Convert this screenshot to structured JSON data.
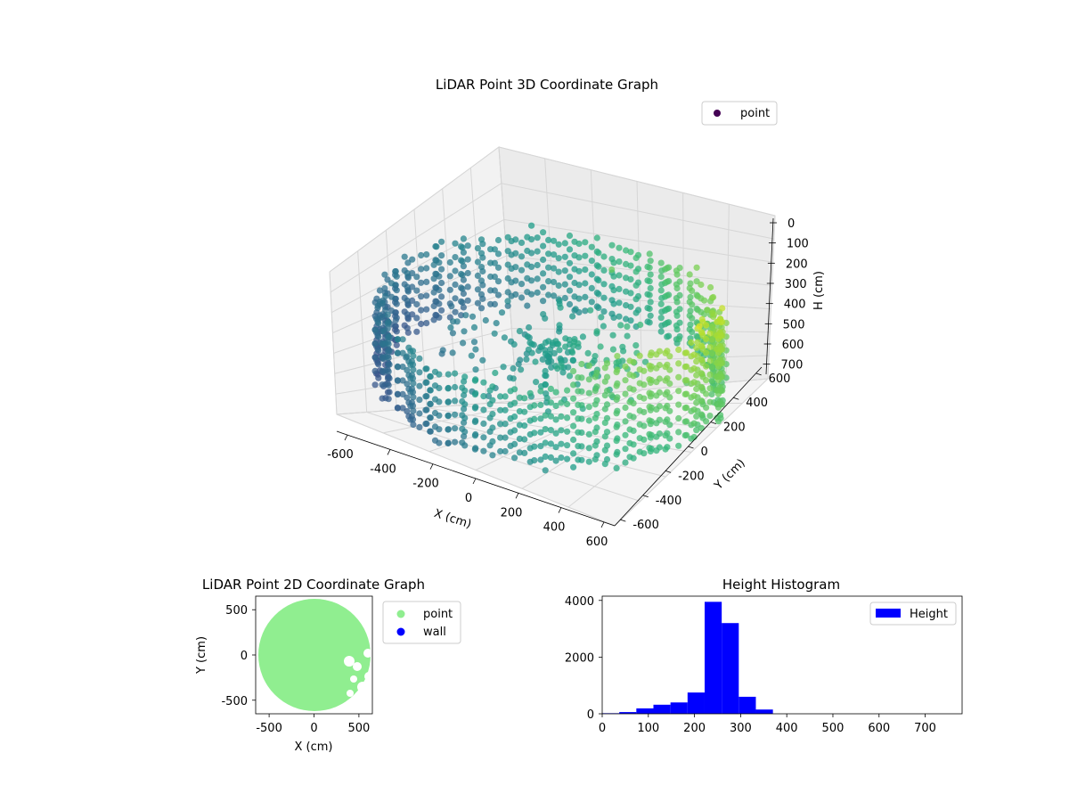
{
  "chart_data": [
    {
      "type": "scatter",
      "projection": "3d",
      "title": "LiDAR Point 3D Coordinate Graph",
      "xlabel": "X (cm)",
      "ylabel": "Y (cm)",
      "zlabel": "H (cm)",
      "xlim": [
        -650,
        650
      ],
      "ylim": [
        -650,
        650
      ],
      "zlim": [
        0,
        750
      ],
      "z_inverted": true,
      "xticks": [
        "-600",
        "-400",
        "-200",
        "0",
        "200",
        "400",
        "600"
      ],
      "yticks": [
        "-600",
        "-400",
        "-200",
        "0",
        "200",
        "400",
        "600"
      ],
      "zticks": [
        "0",
        "100",
        "200",
        "300",
        "400",
        "500",
        "600",
        "700"
      ],
      "colormap": "viridis",
      "grid": true,
      "legend": {
        "position": "upper-right",
        "entries": [
          "point"
        ]
      },
      "series": [
        {
          "name": "point",
          "description_points": [
            {
              "x": -400,
              "y": 300,
              "h": 250
            },
            {
              "x": 0,
              "y": 500,
              "h": 200
            },
            {
              "x": 400,
              "y": 300,
              "h": 250
            },
            {
              "x": 500,
              "y": -100,
              "h": 300
            },
            {
              "x": 300,
              "y": -450,
              "h": 400
            },
            {
              "x": -100,
              "y": -500,
              "h": 450
            },
            {
              "x": -450,
              "y": -300,
              "h": 350
            },
            {
              "x": -550,
              "y": 50,
              "h": 300
            },
            {
              "x": 600,
              "y": -400,
              "h": 700
            },
            {
              "x": 0,
              "y": 0,
              "h": 280
            },
            {
              "x": 200,
              "y": 100,
              "h": 600
            }
          ]
        }
      ]
    },
    {
      "type": "scatter",
      "title": "LiDAR Point 2D Coordinate Graph",
      "xlabel": "X (cm)",
      "ylabel": "Y (cm)",
      "xlim": [
        -650,
        650
      ],
      "ylim": [
        -650,
        650
      ],
      "xticks": [
        "-500",
        "0",
        "500"
      ],
      "yticks": [
        "500",
        "0",
        "-500"
      ],
      "legend": {
        "position": "outside-right",
        "entries": [
          "point",
          "wall"
        ]
      },
      "series": [
        {
          "name": "point",
          "color": "#90ee90",
          "shape": "disc",
          "center": [
            0,
            0
          ],
          "radius": 620
        },
        {
          "name": "wall",
          "color": "#0000ff",
          "values": []
        }
      ]
    },
    {
      "type": "bar",
      "title": "Height Histogram",
      "xlabel": "",
      "ylabel": "",
      "xlim": [
        0,
        780
      ],
      "ylim": [
        0,
        4150
      ],
      "xticks": [
        "0",
        "100",
        "200",
        "300",
        "400",
        "500",
        "600",
        "700"
      ],
      "yticks": [
        "0",
        "2000",
        "4000"
      ],
      "legend": {
        "position": "upper-right",
        "entries": [
          "Height"
        ]
      },
      "series": [
        {
          "name": "Height",
          "color": "#0000ff",
          "bin_edges": [
            0,
            37,
            74,
            111,
            148,
            185,
            222,
            259,
            296,
            333,
            370,
            407,
            444,
            481,
            518,
            555,
            592,
            629,
            666,
            703,
            740
          ],
          "values": [
            20,
            60,
            190,
            320,
            400,
            750,
            3950,
            3200,
            600,
            150,
            0,
            0,
            0,
            0,
            0,
            0,
            0,
            0,
            0,
            0
          ]
        }
      ]
    }
  ]
}
